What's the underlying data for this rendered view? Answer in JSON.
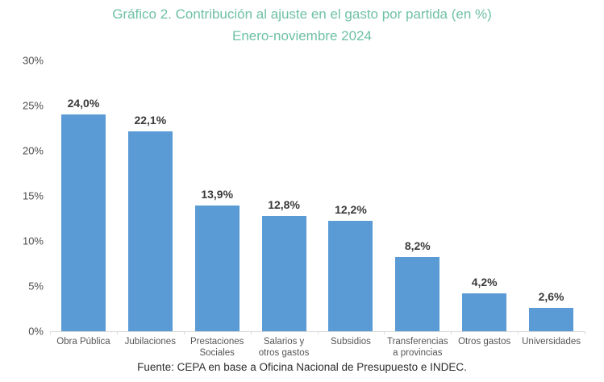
{
  "header": {
    "title_line1": "Gráfico 2. Contribución al ajuste en el gasto por partida (en %)",
    "title_line2": "Enero-noviembre 2024"
  },
  "footer": {
    "source": "Fuente: CEPA en base a Oficina Nacional de Presupuesto e INDEC."
  },
  "colors": {
    "title": "#6FC1A4",
    "bar": "#5B9BD5",
    "axis_line": "#D9D9D9",
    "value_label": "#3A3A3A",
    "y_tick_label": "#4D4D4D",
    "category_label": "#555555",
    "background": "#FFFFFF"
  },
  "chart_data": {
    "type": "bar",
    "title": "Gráfico 2. Contribución al ajuste en el gasto por partida (en %) Enero-noviembre 2024",
    "categories": [
      "Obra Pública",
      "Jubilaciones",
      "Prestaciones Sociales",
      "Salarios y otros gastos",
      "Subsidios",
      "Transferencias a provincias",
      "Otros gastos",
      "Universidades"
    ],
    "values": [
      24.0,
      22.1,
      13.9,
      12.8,
      12.2,
      8.2,
      4.2,
      2.6
    ],
    "value_labels": [
      "24,0%",
      "22,1%",
      "13,9%",
      "12,8%",
      "12,2%",
      "8,2%",
      "4,2%",
      "2,6%"
    ],
    "xlabel": "",
    "ylabel": "",
    "ylim": [
      0,
      30
    ],
    "yticks": [
      {
        "value": 0,
        "label": "0%"
      },
      {
        "value": 5,
        "label": "5%"
      },
      {
        "value": 10,
        "label": "10%"
      },
      {
        "value": 15,
        "label": "15%"
      },
      {
        "value": 20,
        "label": "20%"
      },
      {
        "value": 25,
        "label": "25%"
      },
      {
        "value": 30,
        "label": "30%"
      }
    ],
    "grid": false,
    "legend": false
  }
}
